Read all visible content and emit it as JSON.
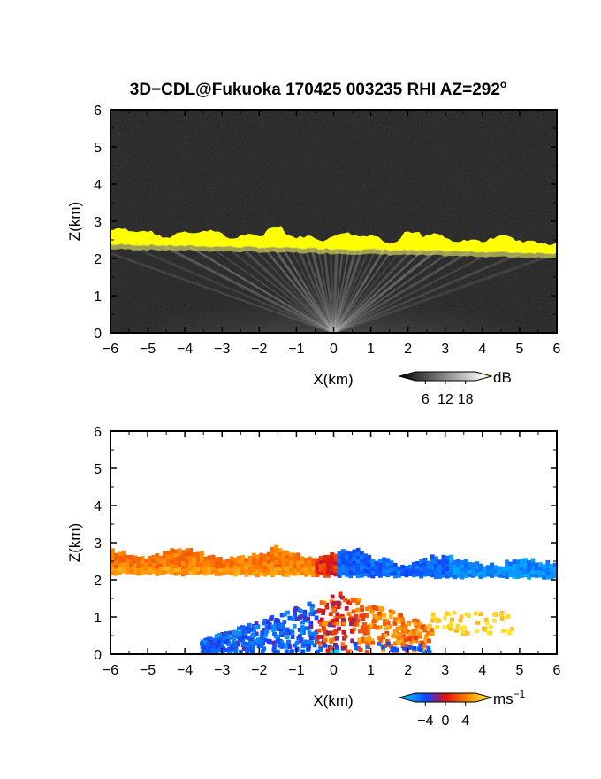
{
  "title": {
    "text": "3D−CDL@Fukuoka 170425 003235 RHI AZ=292",
    "degree": "o"
  },
  "colors": {
    "black": "#000000",
    "white": "#ffffff",
    "layer_yellow": "#ffff00",
    "echo_gray": "#9a9a9a",
    "background_dark": "#1e1e1e"
  },
  "chart_data": [
    {
      "type": "heatmap",
      "quantity": "backscatter intensity",
      "xlabel": "X(km)",
      "ylabel": "Z(km)",
      "xlim": [
        -6,
        6
      ],
      "ylim": [
        0,
        6
      ],
      "xticks": [
        -6,
        -5,
        -4,
        -3,
        -2,
        -1,
        0,
        1,
        2,
        3,
        4,
        5,
        6
      ],
      "yticks": [
        0,
        1,
        2,
        3,
        4,
        5,
        6
      ],
      "colorbar": {
        "unit": "dB",
        "ticks": [
          6,
          12,
          18
        ],
        "colormap": "grayscale to yellow"
      },
      "features": {
        "layer_base_km": 2.25,
        "layer_top_km": 2.6,
        "layer_x_range_km": [
          -6,
          6
        ]
      }
    },
    {
      "type": "heatmap",
      "quantity": "radial velocity",
      "xlabel": "X(km)",
      "ylabel": "Z(km)",
      "xlim": [
        -6,
        6
      ],
      "ylim": [
        0,
        6
      ],
      "xticks": [
        -6,
        -5,
        -4,
        -3,
        -2,
        -1,
        0,
        1,
        2,
        3,
        4,
        5,
        6
      ],
      "yticks": [
        0,
        1,
        2,
        3,
        4,
        5,
        6
      ],
      "colorbar": {
        "unit": "ms",
        "unit_exponent": "−1",
        "ticks": [
          -4,
          0,
          4
        ],
        "tick_labels": [
          "−4",
          "0",
          "4"
        ],
        "colormap": "cyan-blue-red-orange-yellow"
      },
      "features": {
        "layer_base_km": 2.1,
        "layer_top_km": 2.75,
        "negative_side_color_x_lt_0": "orange",
        "positive_side_color_x_gt_0": "blue"
      }
    }
  ]
}
